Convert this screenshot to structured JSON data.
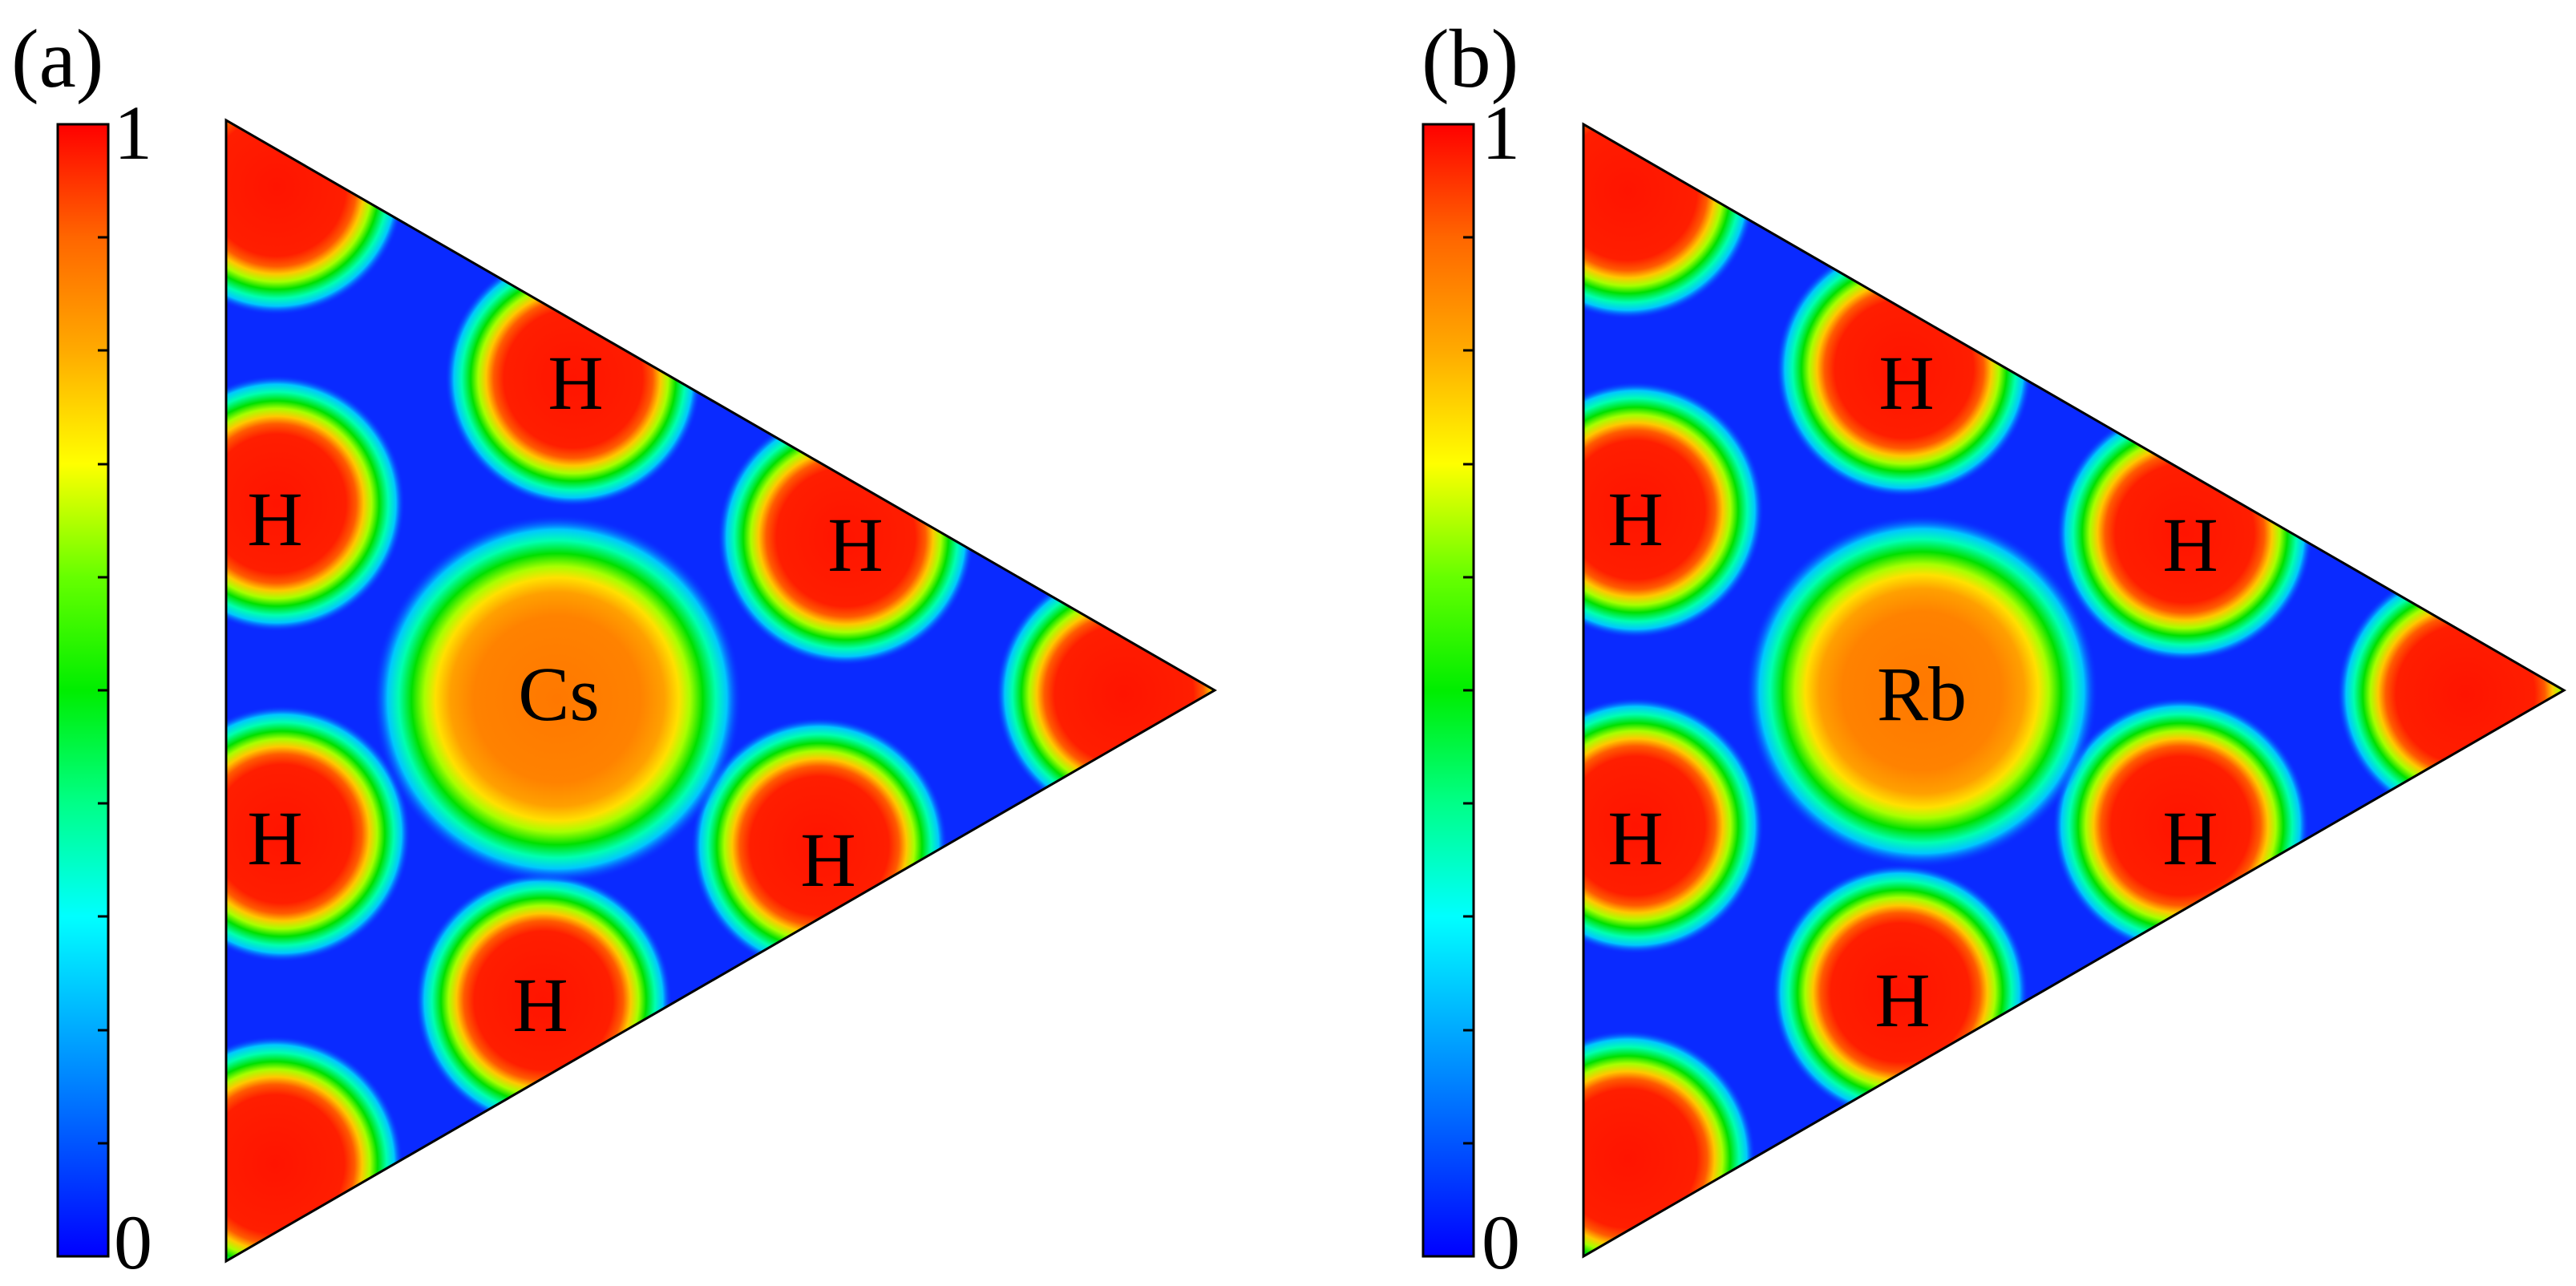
{
  "colorscale": {
    "stops": [
      "#0000ff",
      "#0055ff",
      "#00aaff",
      "#00ffff",
      "#00ff88",
      "#00ee00",
      "#66ff00",
      "#ffff00",
      "#ffaa00",
      "#ff6600",
      "#ff0000"
    ]
  },
  "panels": [
    {
      "id": "a",
      "label": "(a)",
      "colorbar": {
        "max_label": "1",
        "min_label": "0"
      },
      "center_atom": {
        "label": "Cs",
        "value": 0.78
      },
      "h_atoms": [
        {
          "label": "H"
        },
        {
          "label": "H"
        },
        {
          "label": "H"
        },
        {
          "label": "H"
        },
        {
          "label": "H"
        },
        {
          "label": "H"
        }
      ]
    },
    {
      "id": "b",
      "label": "(b)",
      "colorbar": {
        "max_label": "1",
        "min_label": "0"
      },
      "center_atom": {
        "label": "Rb",
        "value": 0.8
      },
      "h_atoms": [
        {
          "label": "H"
        },
        {
          "label": "H"
        },
        {
          "label": "H"
        },
        {
          "label": "H"
        },
        {
          "label": "H"
        },
        {
          "label": "H"
        }
      ]
    }
  ]
}
